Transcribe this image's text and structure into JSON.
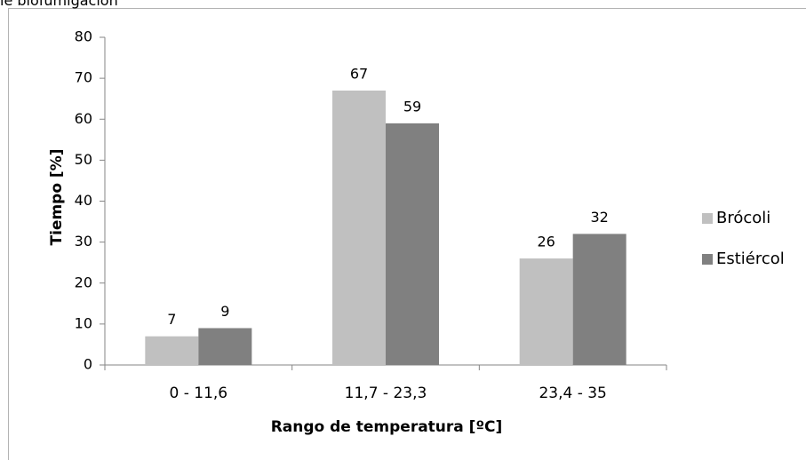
{
  "caption_fragment": "le biofumigación",
  "chart_data": {
    "type": "bar",
    "categories": [
      "0 - 11,6",
      "11,7 - 23,3",
      "23,4 - 35"
    ],
    "series": [
      {
        "name": "Brócoli",
        "values": [
          7,
          67,
          26
        ],
        "color": "#c0c0c0"
      },
      {
        "name": "Estiércol",
        "values": [
          9,
          59,
          32
        ],
        "color": "#808080"
      }
    ],
    "data_labels": [
      [
        "7",
        "67",
        "26"
      ],
      [
        "9",
        "59",
        "32"
      ]
    ],
    "xlabel": "Rango de temperatura [ºC]",
    "ylabel": "Tiempo [%]",
    "ylim": [
      0,
      80
    ],
    "yticks": [
      "0",
      "10",
      "20",
      "30",
      "40",
      "50",
      "60",
      "70",
      "80"
    ],
    "grid": false,
    "legend": "right"
  }
}
